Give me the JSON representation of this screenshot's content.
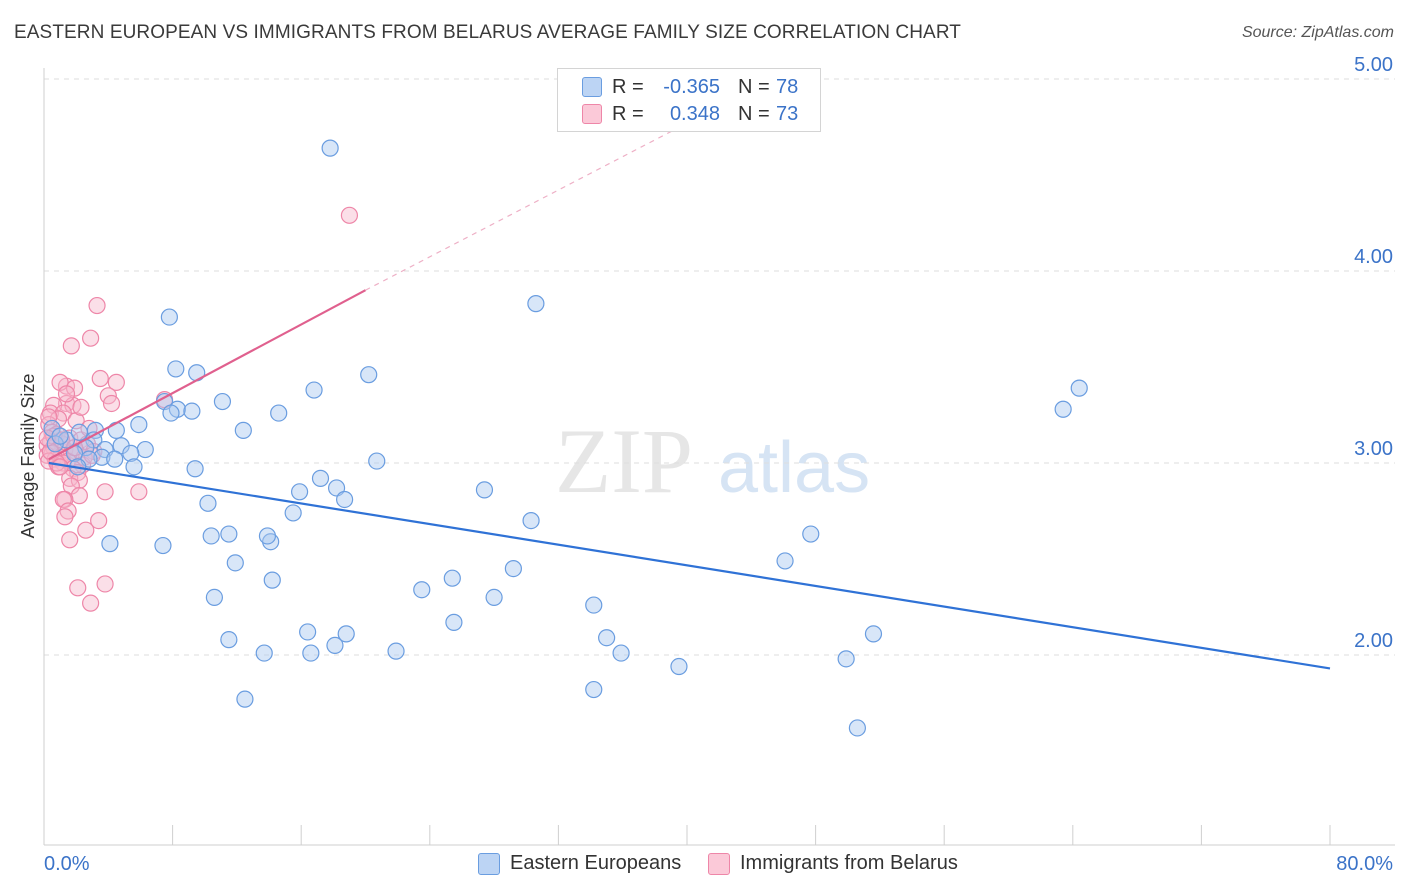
{
  "title": "EASTERN EUROPEAN VS IMMIGRANTS FROM BELARUS AVERAGE FAMILY SIZE CORRELATION CHART",
  "source": "Source: ZipAtlas.com",
  "watermark": {
    "zip": "ZIP",
    "atlas": "atlas"
  },
  "colors": {
    "blue_fill": "#a9c8f0",
    "blue_stroke": "#6a9de0",
    "blue_line": "#2f72d6",
    "pink_fill": "#f7b9cc",
    "pink_stroke": "#ee86a8",
    "pink_line": "#e0608e",
    "axis_text": "#3b73c8",
    "grid": "#dedede"
  },
  "legend": {
    "rows": [
      {
        "r_label": "R =",
        "r_value": "-0.365",
        "n_label": "N =",
        "n_value": "78"
      },
      {
        "r_label": "R =",
        "r_value": "0.348",
        "n_label": "N =",
        "n_value": "73"
      }
    ]
  },
  "bottom_legend": {
    "series1": "Eastern Europeans",
    "series2": "Immigrants from Belarus"
  },
  "chart_data": {
    "type": "scatter",
    "title": "EASTERN EUROPEAN VS IMMIGRANTS FROM BELARUS AVERAGE FAMILY SIZE CORRELATION CHART",
    "xlabel": "",
    "ylabel": "Average Family Size",
    "xlim": [
      0,
      80
    ],
    "ylim": [
      1.0,
      5.1
    ],
    "x_tick_labels": [
      "0.0%",
      "80.0%"
    ],
    "y_ticks": [
      2,
      3,
      4,
      5
    ],
    "y_tick_labels": [
      "2.00",
      "3.00",
      "4.00",
      "5.00"
    ],
    "series": [
      {
        "name": "Eastern Europeans",
        "color": "#6a9de0",
        "trend": {
          "x0": 0.3,
          "y0": 3.0,
          "x1": 80,
          "y1": 1.93
        },
        "points": [
          [
            17.8,
            4.64
          ],
          [
            30.6,
            3.83
          ],
          [
            7.8,
            3.76
          ],
          [
            8.2,
            3.49
          ],
          [
            9.5,
            3.47
          ],
          [
            20.2,
            3.46
          ],
          [
            16.8,
            3.38
          ],
          [
            64.4,
            3.39
          ],
          [
            63.4,
            3.28
          ],
          [
            11.1,
            3.32
          ],
          [
            7.5,
            3.32
          ],
          [
            8.3,
            3.28
          ],
          [
            7.9,
            3.26
          ],
          [
            14.6,
            3.26
          ],
          [
            12.4,
            3.17
          ],
          [
            5.9,
            3.2
          ],
          [
            4.5,
            3.17
          ],
          [
            3.2,
            3.17
          ],
          [
            3.1,
            3.12
          ],
          [
            1.4,
            3.12
          ],
          [
            4.8,
            3.09
          ],
          [
            2.6,
            3.08
          ],
          [
            3.8,
            3.07
          ],
          [
            6.3,
            3.07
          ],
          [
            5.4,
            3.05
          ],
          [
            1.9,
            3.05
          ],
          [
            3.6,
            3.03
          ],
          [
            2.8,
            3.02
          ],
          [
            4.4,
            3.02
          ],
          [
            0.7,
            3.1
          ],
          [
            0.5,
            3.18
          ],
          [
            2.1,
            2.98
          ],
          [
            5.6,
            2.98
          ],
          [
            9.4,
            2.97
          ],
          [
            20.7,
            3.01
          ],
          [
            17.2,
            2.92
          ],
          [
            15.9,
            2.85
          ],
          [
            18.2,
            2.87
          ],
          [
            27.4,
            2.86
          ],
          [
            18.7,
            2.81
          ],
          [
            10.2,
            2.79
          ],
          [
            15.5,
            2.74
          ],
          [
            30.3,
            2.7
          ],
          [
            11.5,
            2.63
          ],
          [
            10.4,
            2.62
          ],
          [
            7.4,
            2.57
          ],
          [
            14.1,
            2.59
          ],
          [
            4.1,
            2.58
          ],
          [
            14.2,
            2.39
          ],
          [
            11.9,
            2.48
          ],
          [
            46.1,
            2.49
          ],
          [
            47.7,
            2.63
          ],
          [
            29.2,
            2.45
          ],
          [
            25.4,
            2.4
          ],
          [
            23.5,
            2.34
          ],
          [
            28.0,
            2.3
          ],
          [
            34.2,
            2.26
          ],
          [
            10.6,
            2.3
          ],
          [
            25.5,
            2.17
          ],
          [
            16.4,
            2.12
          ],
          [
            18.8,
            2.11
          ],
          [
            35.0,
            2.09
          ],
          [
            51.6,
            2.11
          ],
          [
            11.5,
            2.08
          ],
          [
            13.7,
            2.01
          ],
          [
            16.6,
            2.01
          ],
          [
            18.1,
            2.05
          ],
          [
            21.9,
            2.02
          ],
          [
            35.9,
            2.01
          ],
          [
            39.5,
            1.94
          ],
          [
            49.9,
            1.98
          ],
          [
            34.2,
            1.82
          ],
          [
            12.5,
            1.77
          ],
          [
            50.6,
            1.62
          ],
          [
            9.2,
            3.27
          ],
          [
            13.9,
            2.62
          ],
          [
            2.2,
            3.16
          ],
          [
            1.0,
            3.14
          ]
        ]
      },
      {
        "name": "Immigrants from Belarus",
        "color": "#ee86a8",
        "trend": {
          "x0": 0.3,
          "y0": 3.02,
          "x1": 20,
          "y1": 3.9
        },
        "trend_ext": {
          "x0": 20,
          "y0": 3.9,
          "x1": 43,
          "y1": 4.9
        },
        "points": [
          [
            19.0,
            4.29
          ],
          [
            3.3,
            3.82
          ],
          [
            2.9,
            3.65
          ],
          [
            1.7,
            3.61
          ],
          [
            1.4,
            3.4
          ],
          [
            1.9,
            3.39
          ],
          [
            3.5,
            3.44
          ],
          [
            4.5,
            3.42
          ],
          [
            1.0,
            3.42
          ],
          [
            4.0,
            3.35
          ],
          [
            4.2,
            3.31
          ],
          [
            1.4,
            3.31
          ],
          [
            1.8,
            3.3
          ],
          [
            0.6,
            3.3
          ],
          [
            0.4,
            3.26
          ],
          [
            1.2,
            3.26
          ],
          [
            0.9,
            3.23
          ],
          [
            2.0,
            3.22
          ],
          [
            0.3,
            3.2
          ],
          [
            0.5,
            3.16
          ],
          [
            0.8,
            3.15
          ],
          [
            1.6,
            3.13
          ],
          [
            2.3,
            3.12
          ],
          [
            0.4,
            3.11
          ],
          [
            1.1,
            3.1
          ],
          [
            2.7,
            3.1
          ],
          [
            0.2,
            3.09
          ],
          [
            0.6,
            3.08
          ],
          [
            1.3,
            3.07
          ],
          [
            3.1,
            3.06
          ],
          [
            2.0,
            3.06
          ],
          [
            0.5,
            3.05
          ],
          [
            1.7,
            3.05
          ],
          [
            0.2,
            3.04
          ],
          [
            1.0,
            3.03
          ],
          [
            2.5,
            3.03
          ],
          [
            0.7,
            3.02
          ],
          [
            1.5,
            3.01
          ],
          [
            0.3,
            3.01
          ],
          [
            1.2,
            3.0
          ],
          [
            2.4,
            2.99
          ],
          [
            0.9,
            2.98
          ],
          [
            1.8,
            2.97
          ],
          [
            2.1,
            2.95
          ],
          [
            1.6,
            2.92
          ],
          [
            2.2,
            2.91
          ],
          [
            1.7,
            2.88
          ],
          [
            3.8,
            2.85
          ],
          [
            5.9,
            2.85
          ],
          [
            2.2,
            2.83
          ],
          [
            1.3,
            2.81
          ],
          [
            1.2,
            2.81
          ],
          [
            1.5,
            2.75
          ],
          [
            1.3,
            2.72
          ],
          [
            3.4,
            2.7
          ],
          [
            2.6,
            2.65
          ],
          [
            1.6,
            2.6
          ],
          [
            3.8,
            2.37
          ],
          [
            2.1,
            2.35
          ],
          [
            2.9,
            2.27
          ],
          [
            7.5,
            3.33
          ],
          [
            0.6,
            3.14
          ],
          [
            1.1,
            3.12
          ],
          [
            0.4,
            3.06
          ],
          [
            0.8,
            3.0
          ],
          [
            1.9,
            3.08
          ],
          [
            2.8,
            3.18
          ],
          [
            0.3,
            3.24
          ],
          [
            1.4,
            3.36
          ],
          [
            2.3,
            3.29
          ],
          [
            0.2,
            3.13
          ],
          [
            1.0,
            2.98
          ],
          [
            3.0,
            3.04
          ]
        ]
      }
    ]
  }
}
